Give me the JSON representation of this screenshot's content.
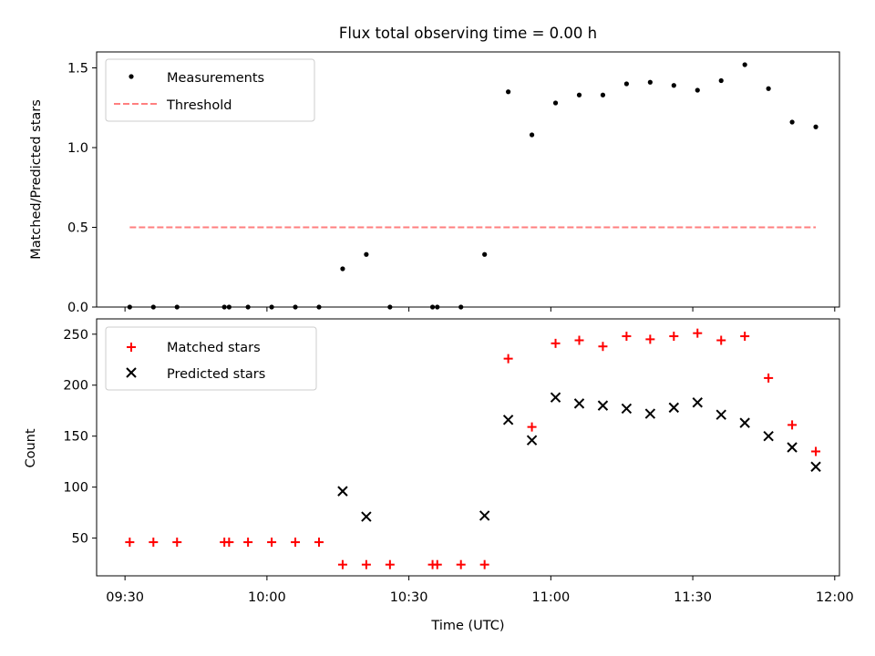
{
  "chart_data": [
    {
      "type": "scatter",
      "title": "Flux total observing time = 0.00 h",
      "xlabel": "",
      "ylabel": "Matched/Predicted stars",
      "ylim": [
        0,
        1.6
      ],
      "yticks": [
        0.0,
        0.5,
        1.0,
        1.5
      ],
      "ytick_labels": [
        "0.0",
        "0.5",
        "1.0",
        "1.5"
      ],
      "grid": false,
      "legend": {
        "placement": "top-left",
        "entries": [
          "Measurements",
          "Threshold"
        ]
      },
      "series": [
        {
          "name": "Measurements",
          "marker": "dot",
          "color": "#000000",
          "x": [
            "09:31",
            "09:36",
            "09:41",
            "09:51",
            "09:52",
            "09:56",
            "10:01",
            "10:06",
            "10:11",
            "10:16",
            "10:21",
            "10:26",
            "10:35",
            "10:36",
            "10:41",
            "10:46",
            "10:51",
            "10:56",
            "11:01",
            "11:06",
            "11:11",
            "11:16",
            "11:21",
            "11:26",
            "11:31",
            "11:36",
            "11:41",
            "11:46",
            "11:51",
            "11:56"
          ],
          "y": [
            0,
            0,
            0,
            0,
            0,
            0,
            0,
            0,
            0,
            0.24,
            0.33,
            0,
            0,
            0,
            0,
            0.33,
            1.35,
            1.08,
            1.28,
            1.33,
            1.33,
            1.4,
            1.41,
            1.39,
            1.36,
            1.42,
            1.52,
            1.37,
            1.16,
            1.13
          ]
        },
        {
          "name": "Threshold",
          "marker": "dashed-line",
          "color": "#ff7f7f",
          "x": [
            "09:31",
            "11:56"
          ],
          "y": [
            0.5,
            0.5
          ]
        }
      ]
    },
    {
      "type": "scatter",
      "title": "",
      "xlabel": "Time (UTC)",
      "ylabel": "Count",
      "ylim": [
        13,
        265
      ],
      "yticks": [
        50,
        100,
        150,
        200,
        250
      ],
      "ytick_labels": [
        "50",
        "100",
        "150",
        "200",
        "250"
      ],
      "xlim": [
        "09:24",
        "12:01"
      ],
      "xticks": [
        "09:30",
        "10:00",
        "10:30",
        "11:00",
        "11:30",
        "12:00"
      ],
      "grid": false,
      "legend": {
        "placement": "top-left",
        "entries": [
          "Matched stars",
          "Predicted stars"
        ]
      },
      "series": [
        {
          "name": "Matched stars",
          "marker": "plus",
          "color": "#ff0000",
          "x": [
            "09:31",
            "09:36",
            "09:41",
            "09:51",
            "09:52",
            "09:56",
            "10:01",
            "10:06",
            "10:11",
            "10:16",
            "10:21",
            "10:26",
            "10:35",
            "10:36",
            "10:41",
            "10:46",
            "10:51",
            "10:56",
            "11:01",
            "11:06",
            "11:11",
            "11:16",
            "11:21",
            "11:26",
            "11:31",
            "11:36",
            "11:41",
            "11:46",
            "11:51",
            "11:56"
          ],
          "y": [
            46,
            46,
            46,
            46,
            46,
            46,
            46,
            46,
            46,
            24,
            24,
            24,
            24,
            24,
            24,
            24,
            226,
            159,
            241,
            244,
            238,
            248,
            245,
            248,
            251,
            244,
            248,
            207,
            161,
            135
          ]
        },
        {
          "name": "Predicted stars",
          "marker": "x",
          "color": "#000000",
          "x": [
            "10:16",
            "10:21",
            "10:46",
            "10:51",
            "10:56",
            "11:01",
            "11:06",
            "11:11",
            "11:16",
            "11:21",
            "11:26",
            "11:31",
            "11:36",
            "11:41",
            "11:46",
            "11:51",
            "11:56"
          ],
          "y": [
            96,
            71,
            72,
            166,
            146,
            188,
            182,
            180,
            177,
            172,
            178,
            183,
            171,
            163,
            150,
            139,
            120
          ]
        }
      ]
    }
  ]
}
